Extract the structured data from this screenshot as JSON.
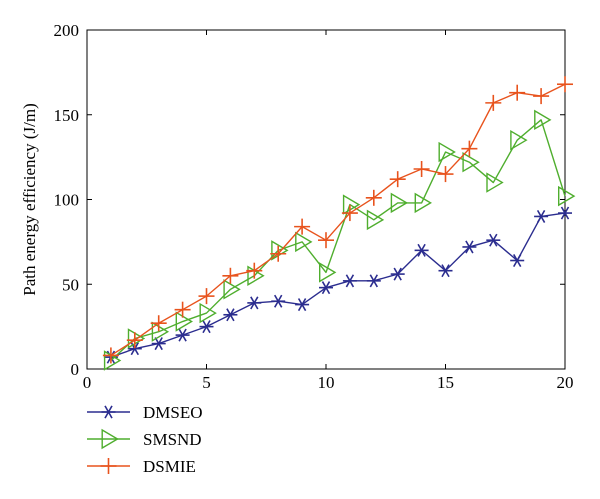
{
  "chart_data": {
    "type": "line",
    "ylabel": "Path energy efficiency (J/m)",
    "xlabel": "",
    "xlim": [
      0,
      20
    ],
    "ylim": [
      0,
      200
    ],
    "xticks": [
      "0",
      "5",
      "10",
      "15",
      "20"
    ],
    "yticks": [
      "0",
      "50",
      "100",
      "150",
      "200"
    ],
    "grid": false,
    "legend_placement": "below-left",
    "x": [
      1,
      2,
      3,
      4,
      5,
      6,
      7,
      8,
      9,
      10,
      11,
      12,
      13,
      14,
      15,
      16,
      17,
      18,
      19,
      20
    ],
    "series": [
      {
        "name": "DMSEO",
        "color": "#2b2d8f",
        "marker": "asterisk",
        "values": [
          7,
          12,
          15,
          20,
          25,
          32,
          39,
          40,
          38,
          48,
          52,
          52,
          56,
          70,
          58,
          72,
          76,
          64,
          90,
          92
        ]
      },
      {
        "name": "SMSND",
        "color": "#4fae2e",
        "marker": "triangle-right",
        "values": [
          5,
          18,
          22,
          28,
          33,
          47,
          55,
          70,
          75,
          57,
          97,
          88,
          98,
          98,
          128,
          122,
          110,
          135,
          147,
          102
        ]
      },
      {
        "name": "DSMIE",
        "color": "#e8531d",
        "marker": "plus",
        "values": [
          8,
          17,
          27,
          35,
          43,
          55,
          58,
          68,
          84,
          76,
          92,
          101,
          112,
          118,
          115,
          130,
          157,
          163,
          161,
          168
        ]
      }
    ]
  }
}
